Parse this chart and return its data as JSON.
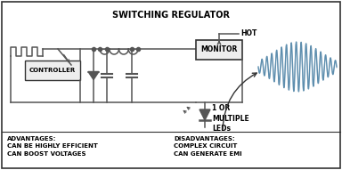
{
  "title": "SWITCHING REGULATOR",
  "bg_color": "#ffffff",
  "border_color": "#333333",
  "circuit_color": "#555555",
  "wave_color": "#5588aa",
  "text_color": "#000000",
  "advantages_text": "ADVANTAGES:\nCAN BE HIGHLY EFFICIENT\nCAN BOOST VOLTAGES",
  "disadvantages_text": "DISADVANTAGES:\nCOMPLEX CIRCUIT\nCAN GENERATE EMI",
  "hot_label": "HOT",
  "monitor_label": "MONITOR",
  "controller_label": "CONTROLLER",
  "led_label": "1 OR\nMULTIPLE\nLEDs",
  "figsize": [
    3.84,
    1.91
  ],
  "dpi": 100
}
